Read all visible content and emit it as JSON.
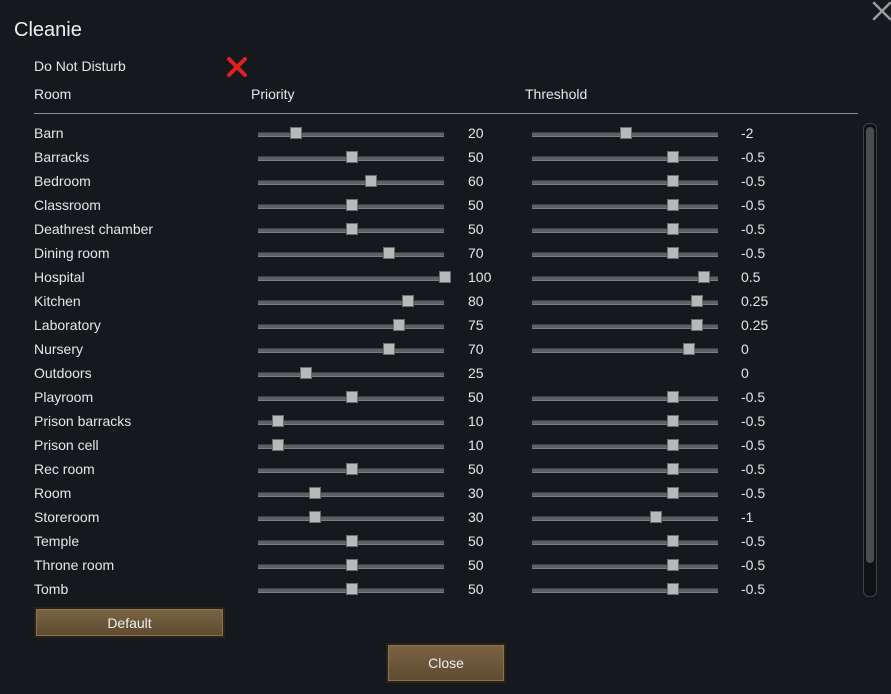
{
  "dialog": {
    "title": "Cleanie",
    "do_not_disturb_label": "Do Not Disturb",
    "do_not_disturb_icon": "red-x-icon",
    "close_icon": "close-x-icon"
  },
  "headers": {
    "room": "Room",
    "priority": "Priority",
    "threshold": "Threshold"
  },
  "scales": {
    "priority_max": 100,
    "threshold_min": -5,
    "threshold_max": 1
  },
  "rooms": [
    {
      "name": "Barn",
      "priority": "20",
      "threshold": "-2",
      "thr_pos": 0.5,
      "has_threshold_slider": true
    },
    {
      "name": "Barracks",
      "priority": "50",
      "threshold": "-0.5",
      "thr_pos": 0.75,
      "has_threshold_slider": true
    },
    {
      "name": "Bedroom",
      "priority": "60",
      "threshold": "-0.5",
      "thr_pos": 0.75,
      "has_threshold_slider": true
    },
    {
      "name": "Classroom",
      "priority": "50",
      "threshold": "-0.5",
      "thr_pos": 0.75,
      "has_threshold_slider": true
    },
    {
      "name": "Deathrest chamber",
      "priority": "50",
      "threshold": "-0.5",
      "thr_pos": 0.75,
      "has_threshold_slider": true
    },
    {
      "name": "Dining room",
      "priority": "70",
      "threshold": "-0.5",
      "thr_pos": 0.75,
      "has_threshold_slider": true
    },
    {
      "name": "Hospital",
      "priority": "100",
      "threshold": "0.5",
      "thr_pos": 0.92,
      "has_threshold_slider": true
    },
    {
      "name": "Kitchen",
      "priority": "80",
      "threshold": "0.25",
      "thr_pos": 0.88,
      "has_threshold_slider": true
    },
    {
      "name": "Laboratory",
      "priority": "75",
      "threshold": "0.25",
      "thr_pos": 0.88,
      "has_threshold_slider": true
    },
    {
      "name": "Nursery",
      "priority": "70",
      "threshold": "0",
      "thr_pos": 0.84,
      "has_threshold_slider": true
    },
    {
      "name": "Outdoors",
      "priority": "25",
      "threshold": "0",
      "thr_pos": 0.84,
      "has_threshold_slider": false
    },
    {
      "name": "Playroom",
      "priority": "50",
      "threshold": "-0.5",
      "thr_pos": 0.75,
      "has_threshold_slider": true
    },
    {
      "name": "Prison barracks",
      "priority": "10",
      "threshold": "-0.5",
      "thr_pos": 0.75,
      "has_threshold_slider": true
    },
    {
      "name": "Prison cell",
      "priority": "10",
      "threshold": "-0.5",
      "thr_pos": 0.75,
      "has_threshold_slider": true
    },
    {
      "name": "Rec room",
      "priority": "50",
      "threshold": "-0.5",
      "thr_pos": 0.75,
      "has_threshold_slider": true
    },
    {
      "name": "Room",
      "priority": "30",
      "threshold": "-0.5",
      "thr_pos": 0.75,
      "has_threshold_slider": true
    },
    {
      "name": "Storeroom",
      "priority": "30",
      "threshold": "-1",
      "thr_pos": 0.66,
      "has_threshold_slider": true
    },
    {
      "name": "Temple",
      "priority": "50",
      "threshold": "-0.5",
      "thr_pos": 0.75,
      "has_threshold_slider": true
    },
    {
      "name": "Throne room",
      "priority": "50",
      "threshold": "-0.5",
      "thr_pos": 0.75,
      "has_threshold_slider": true
    },
    {
      "name": "Tomb",
      "priority": "50",
      "threshold": "-0.5",
      "thr_pos": 0.75,
      "has_threshold_slider": true
    }
  ],
  "buttons": {
    "default_label": "Default",
    "close_label": "Close"
  },
  "colors": {
    "accent_red": "#e02020",
    "button_brown": "#6b5538",
    "background": "#15191d"
  }
}
